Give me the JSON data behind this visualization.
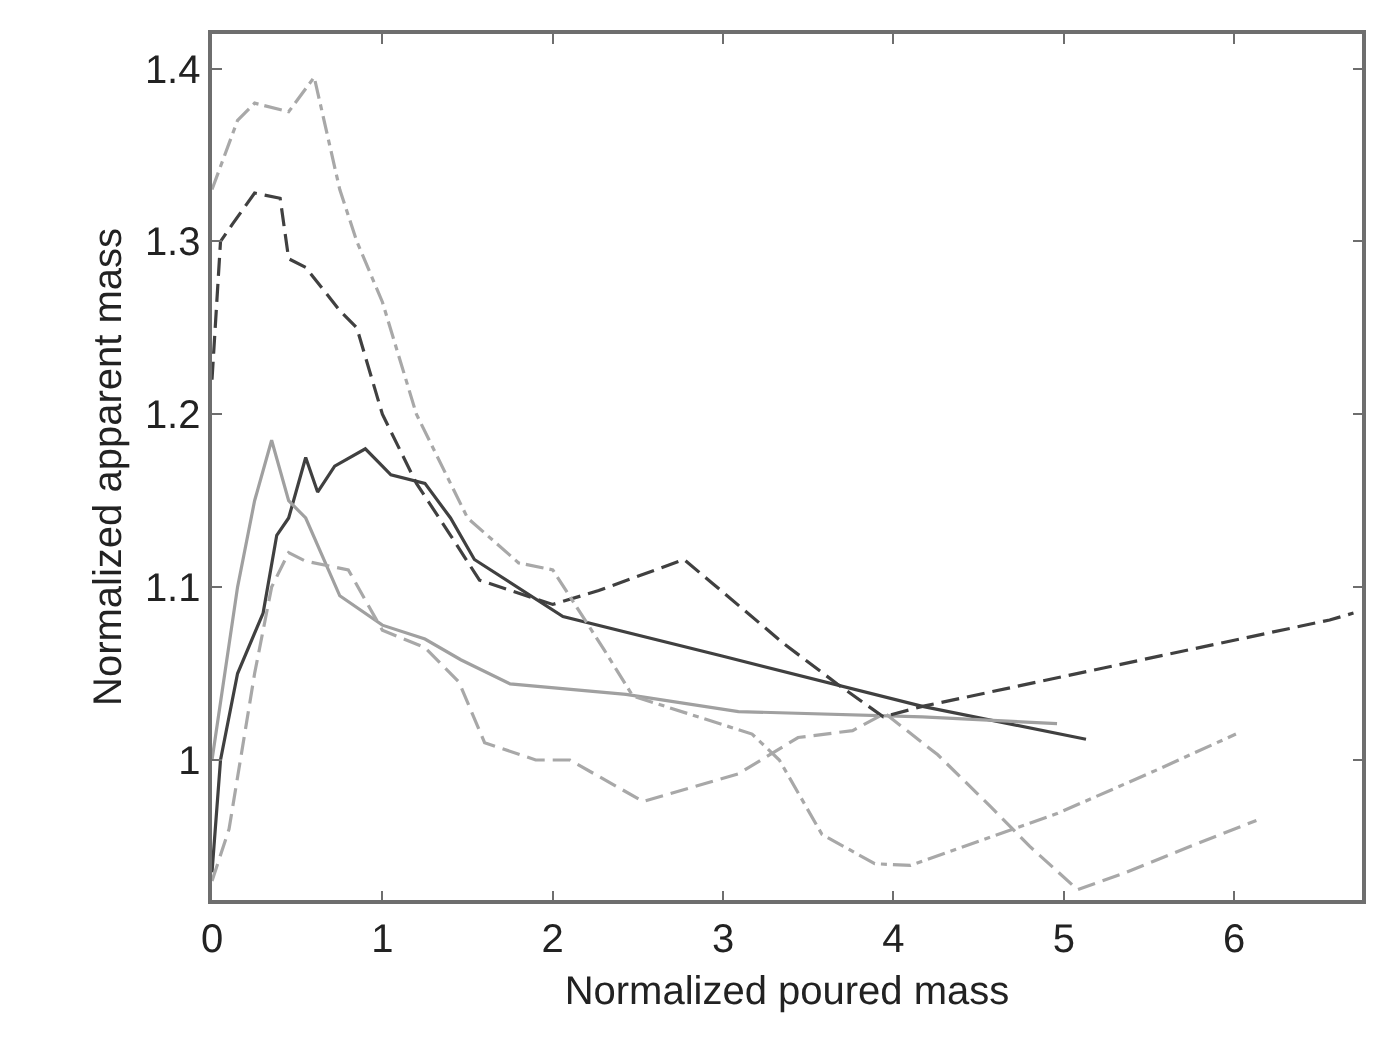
{
  "chart_data": {
    "type": "line",
    "xlabel": "Normalized poured mass",
    "ylabel": "Normalized apparent mass",
    "xlim": [
      0,
      6.75
    ],
    "ylim": [
      0.919,
      1.42
    ],
    "xticks": [
      0,
      1,
      2,
      3,
      4,
      5,
      6
    ],
    "yticks": [
      1,
      1.1,
      1.2,
      1.3,
      1.4
    ],
    "marker": "none",
    "series": [
      {
        "color": "#404040",
        "line_style": "solid",
        "x": [
          0,
          0.05,
          0.15,
          0.3,
          0.38,
          0.45,
          0.55,
          0.62,
          0.72,
          0.9,
          1.0,
          1.05,
          1.25,
          1.4,
          1.54,
          2.06,
          3.0,
          4.17,
          5.13
        ],
        "values": [
          0.935,
          1.0,
          1.05,
          1.085,
          1.13,
          1.14,
          1.175,
          1.155,
          1.17,
          1.18,
          1.17,
          1.165,
          1.16,
          1.14,
          1.116,
          1.083,
          1.06,
          1.031,
          1.012
        ]
      },
      {
        "color": "#a0a0a0",
        "line_style": "solid",
        "x": [
          0,
          0.15,
          0.25,
          0.35,
          0.45,
          0.55,
          0.75,
          1.0,
          1.25,
          1.46,
          1.75,
          2.43,
          3.09,
          4.17,
          4.96
        ],
        "values": [
          1.0,
          1.1,
          1.15,
          1.185,
          1.15,
          1.14,
          1.095,
          1.078,
          1.07,
          1.058,
          1.044,
          1.038,
          1.028,
          1.025,
          1.021
        ]
      },
      {
        "color": "#404040",
        "line_style": "dashed",
        "x": [
          0,
          0.05,
          0.12,
          0.25,
          0.4,
          0.45,
          0.55,
          0.75,
          0.85,
          1.0,
          1.2,
          1.4,
          1.57,
          2.0,
          2.27,
          2.77,
          2.94,
          3.36,
          3.67,
          3.94,
          4.17,
          6.56,
          6.7
        ],
        "values": [
          1.22,
          1.3,
          1.31,
          1.328,
          1.325,
          1.29,
          1.285,
          1.26,
          1.25,
          1.2,
          1.16,
          1.13,
          1.104,
          1.09,
          1.098,
          1.116,
          1.102,
          1.067,
          1.044,
          1.025,
          1.031,
          1.081,
          1.085
        ]
      },
      {
        "color": "#a8a8a8",
        "line_style": "dashed",
        "x": [
          0,
          0.1,
          0.25,
          0.35,
          0.45,
          0.55,
          0.8,
          1.0,
          1.25,
          1.45,
          1.6,
          1.9,
          2.1,
          2.53,
          3.09,
          3.44,
          3.76,
          3.95,
          4.26,
          4.57,
          4.8,
          5.08,
          5.34,
          5.74,
          6.13
        ],
        "values": [
          0.93,
          0.96,
          1.05,
          1.1,
          1.12,
          1.115,
          1.11,
          1.075,
          1.065,
          1.045,
          1.01,
          1.0,
          1.0,
          0.976,
          0.992,
          1.013,
          1.017,
          1.027,
          1.003,
          0.973,
          0.95,
          0.925,
          0.934,
          0.95,
          0.965
        ]
      },
      {
        "color": "#a8a8a8",
        "line_style": "dashdot",
        "x": [
          0,
          0.15,
          0.25,
          0.45,
          0.6,
          0.75,
          0.85,
          1.0,
          1.2,
          1.5,
          1.8,
          2.0,
          2.3,
          2.47,
          3.17,
          3.33,
          3.58,
          3.89,
          4.1,
          4.96,
          5.54,
          6.01
        ],
        "values": [
          1.33,
          1.37,
          1.38,
          1.375,
          1.395,
          1.33,
          1.3,
          1.265,
          1.2,
          1.14,
          1.114,
          1.11,
          1.064,
          1.037,
          1.015,
          1.0,
          0.957,
          0.94,
          0.939,
          0.969,
          0.994,
          1.015
        ]
      }
    ]
  }
}
